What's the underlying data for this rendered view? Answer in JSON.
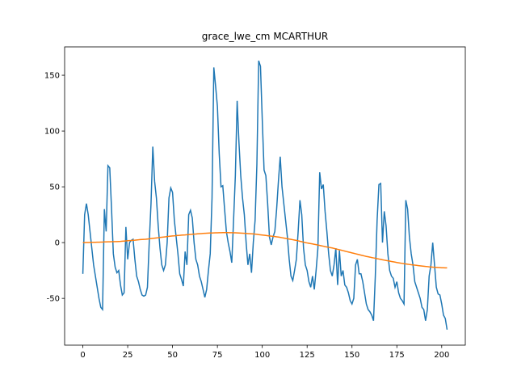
{
  "chart_data": {
    "type": "line",
    "title": "grace_lwe_cm MCARTHUR",
    "series": [
      {
        "color": "#1f77b4",
        "values": [
          -28,
          25,
          35,
          25,
          10,
          -5,
          -20,
          -30,
          -40,
          -50,
          -58,
          -60,
          30,
          10,
          69,
          67,
          30,
          -10,
          -22,
          -27,
          -25,
          -38,
          -47,
          -45,
          14,
          -15,
          0,
          2,
          3,
          -15,
          -30,
          -35,
          -42,
          -47,
          -48,
          -47,
          -40,
          0,
          35,
          86,
          55,
          40,
          15,
          -5,
          -20,
          -25,
          -20,
          0,
          40,
          49,
          45,
          20,
          5,
          -10,
          -28,
          -33,
          -39,
          -8,
          -20,
          25,
          29,
          22,
          0,
          -15,
          -20,
          -30,
          -35,
          -42,
          -49,
          -42,
          -25,
          -10,
          40,
          157,
          140,
          122,
          80,
          50,
          51,
          30,
          10,
          0,
          -8,
          -18,
          20,
          60,
          127,
          90,
          60,
          40,
          25,
          0,
          -20,
          -10,
          -27,
          0,
          20,
          70,
          163,
          158,
          110,
          65,
          60,
          35,
          5,
          -2,
          5,
          10,
          30,
          55,
          77,
          50,
          35,
          20,
          5,
          -15,
          -30,
          -34,
          -25,
          -15,
          10,
          38,
          25,
          -5,
          -20,
          -25,
          -35,
          -40,
          -30,
          -42,
          -25,
          -5,
          63,
          48,
          52,
          28,
          10,
          -10,
          -25,
          -30,
          -20,
          -5,
          -38,
          -7,
          -30,
          -25,
          -38,
          -40,
          -45,
          -52,
          -55,
          -50,
          -20,
          -15,
          -28,
          -28,
          -35,
          -45,
          -55,
          -60,
          -62,
          -65,
          -70,
          -30,
          20,
          52,
          53,
          0,
          28,
          15,
          -10,
          -25,
          -30,
          -32,
          -40,
          -35,
          -45,
          -50,
          -52,
          -55,
          38,
          30,
          5,
          -10,
          -20,
          -35,
          -40,
          -45,
          -50,
          -58,
          -60,
          -70,
          -60,
          -30,
          -20,
          0,
          -20,
          -40,
          -46,
          -47,
          -55,
          -65,
          -68,
          -78
        ]
      },
      {
        "color": "#ff7f0e",
        "values": [
          0,
          0,
          0.1,
          0.1,
          0.2,
          0.2,
          0.3,
          0.3,
          0.4,
          0.4,
          0.5,
          0.5,
          0.6,
          0.6,
          0.7,
          0.7,
          0.8,
          0.8,
          0.9,
          0.9,
          1,
          1.1,
          1.3,
          1.4,
          1.5,
          1.7,
          1.8,
          1.9,
          2.1,
          2.2,
          2.4,
          2.5,
          2.7,
          2.8,
          2.9,
          3,
          3.2,
          3.4,
          3.6,
          3.8,
          4,
          4.2,
          4.4,
          4.6,
          4.8,
          5,
          5.2,
          5.4,
          5.6,
          5.8,
          6,
          6.1,
          6.3,
          6.4,
          6.5,
          6.7,
          6.8,
          6.9,
          7.1,
          7.2,
          7.3,
          7.5,
          7.6,
          7.7,
          7.9,
          8,
          8.1,
          8.2,
          8.3,
          8.4,
          8.5,
          8.6,
          8.6,
          8.7,
          8.8,
          8.8,
          8.9,
          8.9,
          9,
          9,
          9,
          9,
          8.9,
          8.9,
          8.8,
          8.8,
          8.7,
          8.6,
          8.5,
          8.4,
          8.3,
          8.2,
          8.1,
          8.0,
          7.9,
          7.8,
          7.6,
          7.4,
          7.2,
          7,
          6.8,
          6.6,
          6.4,
          6.2,
          6,
          5.8,
          5.6,
          5.4,
          5.2,
          5,
          4.7,
          4.4,
          4.1,
          3.8,
          3.5,
          3.2,
          2.9,
          2.6,
          2.3,
          2,
          1.6,
          1.2,
          0.8,
          0.4,
          0,
          -0.3,
          -0.6,
          -0.9,
          -1.2,
          -1.5,
          -1.8,
          -2.2,
          -2.5,
          -2.9,
          -3.2,
          -3.6,
          -3.9,
          -4.2,
          -4.5,
          -4.8,
          -5.2,
          -5.6,
          -6,
          -6.4,
          -6.8,
          -7.2,
          -7.6,
          -8,
          -8.4,
          -8.8,
          -9.2,
          -9.6,
          -10,
          -10.4,
          -10.8,
          -11.2,
          -11.6,
          -12,
          -12.4,
          -12.7,
          -13,
          -13.4,
          -13.7,
          -14,
          -14.4,
          -14.7,
          -15,
          -15.4,
          -15.7,
          -16,
          -16.3,
          -16.6,
          -16.9,
          -17.2,
          -17.5,
          -17.8,
          -18.1,
          -18.4,
          -18.6,
          -18.9,
          -19.1,
          -19.4,
          -19.6,
          -19.8,
          -20,
          -20.2,
          -20.4,
          -20.6,
          -20.8,
          -21,
          -21.2,
          -21.4,
          -21.5,
          -21.7,
          -21.8,
          -22,
          -22.1,
          -22.2,
          -22.3,
          -22.4,
          -22.5,
          -22.5,
          -22.6,
          -22.6
        ]
      }
    ],
    "xlim": [
      -10.15,
      213.15
    ],
    "xticks": [
      0,
      25,
      50,
      75,
      100,
      125,
      150,
      175,
      200
    ],
    "ylim": [
      -91.9,
      175.4
    ],
    "yticks": [
      -50,
      0,
      50,
      100,
      150
    ]
  }
}
